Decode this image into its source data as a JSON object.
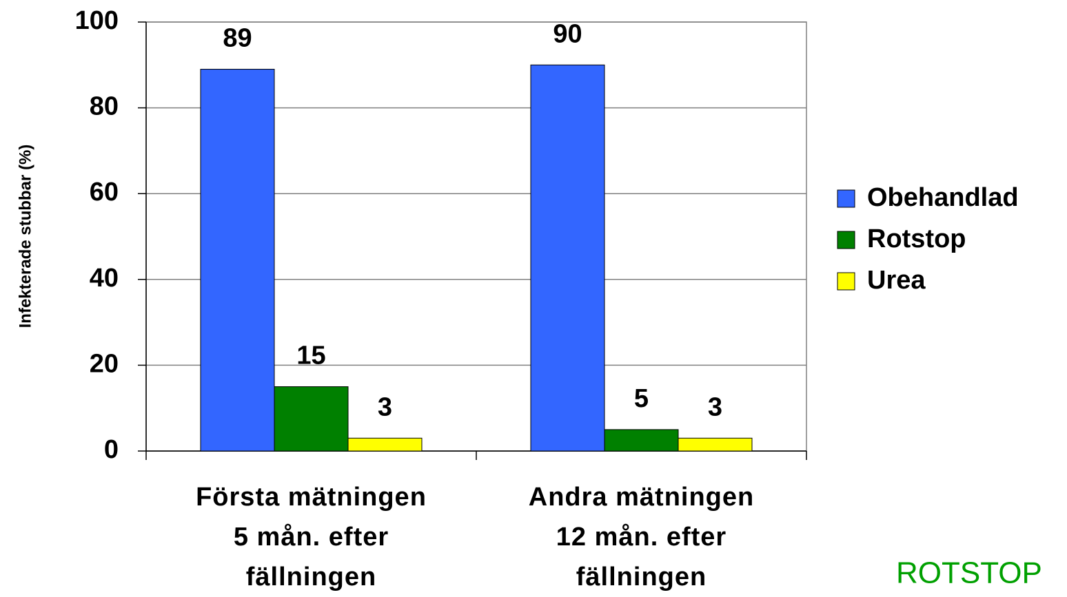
{
  "chart_data": {
    "type": "bar",
    "y_axis_label": "Infekterade stubbar (%)",
    "categories": [
      "Första mätningen\n5 mån. efter\nfällningen",
      "Andra mätningen\n12 mån. efter\nfällningen"
    ],
    "series": [
      {
        "name": "Obehandlad",
        "color": "#3366ff",
        "values": [
          89,
          90
        ]
      },
      {
        "name": "Rotstop",
        "color": "#008000",
        "values": [
          15,
          5
        ]
      },
      {
        "name": "Urea",
        "color": "#ffff00",
        "values": [
          3,
          3
        ]
      }
    ],
    "ylim": [
      0,
      100
    ],
    "yticks": [
      0,
      20,
      40,
      60,
      80,
      100
    ],
    "grid": true,
    "legend": "right",
    "footer": "ROTSTOP"
  }
}
